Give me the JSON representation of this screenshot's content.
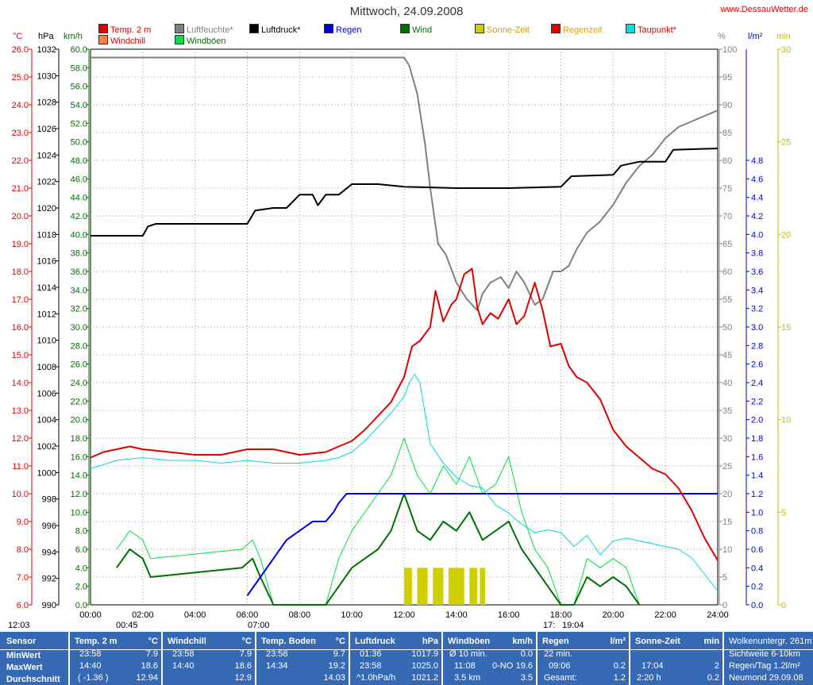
{
  "header": {
    "title": "Mittwoch, 24.09.2008",
    "site": "www.DessauWetter.de"
  },
  "legend": {
    "items": [
      {
        "label": "Temp. 2 m",
        "color": "#e00000",
        "text_color": "#e00000"
      },
      {
        "label": "Luftfeuchte*",
        "color": "#808080",
        "text_color": "#808080"
      },
      {
        "label": "Luftdruck*",
        "color": "#000000",
        "text_color": "#000000"
      },
      {
        "label": "Regen",
        "color": "#0000e0",
        "text_color": "#0000e0"
      },
      {
        "label": "Wind",
        "color": "#007000",
        "text_color": "#007000"
      },
      {
        "label": "Sonne-Zeit",
        "color": "#d0d000",
        "text_color": "#d0a000"
      },
      {
        "label": "Regenzeit",
        "color": "#e00000",
        "text_color": "#e0a000"
      },
      {
        "label": "Taupunkt*",
        "color": "#00e0e0",
        "text_color": "#e00000"
      },
      {
        "label": "Windchill",
        "color": "#ff8040",
        "text_color": "#e00000"
      },
      {
        "label": "Windböen",
        "color": "#00e040",
        "text_color": "#007000"
      }
    ]
  },
  "axes": {
    "units": {
      "temp": "°C",
      "pressure": "hPa",
      "wind": "km/h",
      "humidity": "%",
      "rain": "l/m²",
      "minutes": "min"
    },
    "temp_ticks": [
      "26.0",
      "25.0",
      "24.0",
      "23.0",
      "22.0",
      "21.0",
      "20.0",
      "19.0",
      "18.0",
      "17.0",
      "16.0",
      "15.0",
      "14.0",
      "13.0",
      "12.0",
      "11.0",
      "10.0",
      "9.0",
      "8.0",
      "7.0",
      "6.0"
    ],
    "pressure_ticks": [
      "1032",
      "1030",
      "1028",
      "1026",
      "1024",
      "1022",
      "1020",
      "1018",
      "1016",
      "1014",
      "1012",
      "1010",
      "1008",
      "1006",
      "1004",
      "1002",
      "1000",
      "998",
      "996",
      "994",
      "992",
      "990"
    ],
    "wind_ticks": [
      "60.0",
      "58.0",
      "56.0",
      "54.0",
      "52.0",
      "50.0",
      "48.0",
      "46.0",
      "44.0",
      "42.0",
      "40.0",
      "38.0",
      "36.0",
      "34.0",
      "32.0",
      "30.0",
      "28.0",
      "26.0",
      "24.0",
      "22.0",
      "20.0",
      "18.0",
      "16.0",
      "14.0",
      "12.0",
      "10.0",
      "8.0",
      "6.0",
      "4.0",
      "2.0",
      "0.0"
    ],
    "humidity_ticks": [
      "100",
      "95",
      "90",
      "85",
      "80",
      "75",
      "70",
      "65",
      "60",
      "55",
      "50",
      "45",
      "40",
      "35",
      "30",
      "25",
      "20",
      "15",
      "10",
      "5",
      "0"
    ],
    "rain_ticks": [
      "4.8",
      "4.6",
      "4.4",
      "4.2",
      "4.0",
      "3.8",
      "3.6",
      "3.4",
      "3.2",
      "3.0",
      "2.8",
      "2.6",
      "2.4",
      "2.2",
      "2.0",
      "1.8",
      "1.6",
      "1.4",
      "1.2",
      "1.0",
      "0.8",
      "0.6",
      "0.4",
      "0.2",
      "0.0"
    ],
    "minutes_ticks": [
      "30",
      "25",
      "20",
      "15",
      "10",
      "5",
      "0"
    ],
    "x_ticks": [
      "00:00",
      "02:00",
      "04:00",
      "06:00",
      "08:00",
      "10:00",
      "12:00",
      "14:00",
      "16:00",
      "18:00",
      "20:00",
      "22:00",
      "24:00"
    ]
  },
  "astro": {
    "moonrise": "12:03",
    "moonset": "00:45",
    "sunrise": "07:00",
    "sunset_marker": "17:",
    "sunset": "19:04"
  },
  "chart_data": {
    "type": "line",
    "x_unit": "hours",
    "xlim": [
      0,
      24
    ],
    "series": [
      {
        "name": "Temp. 2 m",
        "axis": "temp",
        "ylim": [
          6,
          26
        ],
        "x": [
          0,
          0.5,
          1,
          1.5,
          2,
          3,
          4,
          5,
          6,
          7,
          8,
          9,
          9.5,
          10,
          10.5,
          11,
          11.5,
          12,
          12.3,
          12.6,
          13,
          13.2,
          13.5,
          13.8,
          14,
          14.3,
          14.6,
          14.8,
          15,
          15.3,
          15.6,
          16,
          16.3,
          16.6,
          17,
          17.3,
          17.6,
          18,
          18.3,
          18.6,
          19,
          19.5,
          20,
          20.5,
          21,
          21.5,
          22,
          22.5,
          23,
          23.5,
          24
        ],
        "values": [
          11.3,
          11.5,
          11.6,
          11.7,
          11.6,
          11.5,
          11.4,
          11.4,
          11.6,
          11.6,
          11.4,
          11.5,
          11.7,
          11.9,
          12.3,
          12.8,
          13.3,
          14.2,
          15.3,
          15.5,
          16.0,
          17.3,
          16.2,
          16.8,
          17.0,
          17.9,
          18.1,
          16.7,
          16.1,
          16.5,
          16.3,
          17.0,
          16.1,
          16.4,
          17.6,
          16.6,
          15.3,
          15.4,
          14.6,
          14.2,
          14.0,
          13.4,
          12.3,
          11.7,
          11.3,
          10.9,
          10.7,
          10.2,
          9.4,
          8.4,
          7.6
        ]
      },
      {
        "name": "Taupunkt*",
        "axis": "temp",
        "ylim": [
          6,
          26
        ],
        "x": [
          0,
          1,
          2,
          3,
          4,
          5,
          6,
          7,
          8,
          9,
          9.5,
          10,
          10.5,
          11,
          11.5,
          12,
          12.2,
          12.4,
          12.6,
          13,
          13.5,
          14,
          14.5,
          15,
          15.5,
          16,
          16.5,
          17,
          17.5,
          18,
          18.5,
          19,
          19.5,
          20,
          20.5,
          21,
          21.5,
          22,
          22.5,
          23,
          23.5,
          24
        ],
        "values": [
          10.9,
          11.2,
          11.3,
          11.2,
          11.2,
          11.1,
          11.2,
          11.1,
          11.1,
          11.2,
          11.3,
          11.5,
          11.9,
          12.4,
          12.9,
          13.5,
          14.0,
          14.3,
          14.0,
          11.8,
          11.1,
          10.6,
          10.3,
          10.2,
          9.6,
          9.3,
          8.9,
          8.6,
          8.7,
          8.6,
          8.1,
          8.5,
          7.8,
          8.3,
          8.4,
          8.3,
          8.2,
          8.1,
          8.0,
          7.7,
          7.1,
          6.5
        ]
      },
      {
        "name": "Luftfeuchte*",
        "axis": "humidity",
        "ylim": [
          0,
          100
        ],
        "x": [
          0,
          6,
          12,
          12.2,
          12.5,
          12.8,
          13,
          13.3,
          13.6,
          14,
          14.4,
          14.8,
          15,
          15.3,
          15.7,
          16,
          16.3,
          16.6,
          17,
          17.3,
          17.7,
          18,
          18.3,
          18.6,
          19,
          19.5,
          20,
          20.5,
          21,
          21.5,
          22,
          22.5,
          23,
          23.5,
          24
        ],
        "values": [
          98.5,
          98.5,
          98.5,
          97,
          92,
          83,
          75,
          65,
          63,
          58,
          55,
          53,
          56,
          58,
          59,
          57,
          60,
          58,
          54,
          55,
          60,
          60,
          61,
          64,
          67,
          69,
          72,
          76,
          79,
          81,
          84,
          86,
          87,
          88,
          89
        ]
      },
      {
        "name": "Luftdruck*",
        "axis": "pressure",
        "ylim": [
          990,
          1032
        ],
        "x": [
          0,
          2,
          2.2,
          2.5,
          6,
          6.3,
          7,
          7.5,
          8,
          8.5,
          8.7,
          9,
          9.5,
          10,
          11,
          12,
          14,
          16,
          18,
          18.4,
          20,
          20.3,
          21,
          22,
          22.3,
          24
        ],
        "values": [
          1017.9,
          1017.9,
          1018.6,
          1018.8,
          1018.8,
          1019.8,
          1020.0,
          1020.0,
          1021.0,
          1021.0,
          1020.2,
          1021.0,
          1021.0,
          1021.8,
          1021.8,
          1021.6,
          1021.5,
          1021.5,
          1021.6,
          1022.4,
          1022.5,
          1023.2,
          1023.5,
          1023.5,
          1024.4,
          1024.5
        ]
      },
      {
        "name": "Regen",
        "axis": "rain",
        "ylim": [
          0,
          4.8
        ],
        "x": [
          6,
          6.5,
          7,
          7.5,
          8,
          8.5,
          9,
          9.3,
          9.5,
          9.8,
          10.5,
          12,
          14,
          16,
          18,
          20,
          22,
          24
        ],
        "values": [
          0.1,
          0.3,
          0.5,
          0.7,
          0.8,
          0.9,
          0.9,
          1.0,
          1.1,
          1.2,
          1.2,
          1.2,
          1.2,
          1.2,
          1.2,
          1.2,
          1.2,
          1.2
        ]
      },
      {
        "name": "Wind",
        "axis": "wind",
        "ylim": [
          0,
          60
        ],
        "x": [
          1,
          1.5,
          2,
          2.3,
          5.8,
          6.2,
          6.5,
          7,
          9,
          9.5,
          10,
          10.5,
          11,
          11.5,
          12,
          12.5,
          13,
          13.5,
          14,
          14.5,
          15,
          15.5,
          16,
          16.5,
          17,
          17.5,
          18,
          18.5,
          19,
          19.5,
          20,
          20.5,
          21
        ],
        "values": [
          4,
          6,
          5,
          3,
          4,
          5,
          3,
          0,
          0,
          2,
          4,
          5,
          6,
          8,
          12,
          8,
          7,
          9,
          8,
          10,
          7,
          8,
          9,
          6,
          4,
          2,
          0,
          0,
          3,
          2,
          3,
          2,
          0
        ]
      },
      {
        "name": "Windböen",
        "axis": "wind",
        "ylim": [
          0,
          60
        ],
        "x": [
          1,
          1.5,
          2,
          2.3,
          5.8,
          6.2,
          6.5,
          7,
          9,
          9.5,
          10,
          10.5,
          11,
          11.5,
          12,
          12.5,
          13,
          13.5,
          14,
          14.5,
          15,
          15.5,
          16,
          16.5,
          17,
          17.5,
          18,
          18.5,
          19,
          19.5,
          20,
          20.5,
          21
        ],
        "values": [
          6,
          8,
          7,
          5,
          6,
          7,
          5,
          0,
          0,
          5,
          8,
          10,
          12,
          14,
          18,
          14,
          12,
          15,
          13,
          16,
          12,
          13,
          16,
          10,
          6,
          4,
          0,
          0,
          5,
          4,
          5,
          4,
          0
        ]
      }
    ],
    "sun_periods": [
      [
        12.0,
        12.3
      ],
      [
        12.5,
        12.9
      ],
      [
        13.1,
        13.5
      ],
      [
        13.7,
        14.3
      ],
      [
        14.5,
        14.8
      ],
      [
        14.9,
        15.1
      ]
    ],
    "sun_ylim": [
      0,
      30
    ],
    "sun_value": 2
  },
  "stats": {
    "row_labels": [
      "Sensor",
      "MinWert",
      "MaxWert",
      "Durchschnitt"
    ],
    "temp": {
      "title": "Temp. 2 m",
      "unit": "°C",
      "min_time": "23:58",
      "min": "7.9",
      "max_time": "14:40",
      "max": "18.6",
      "avg_note": "( -1.36 )",
      "avg": "12.94"
    },
    "windchill": {
      "title": "Windchill",
      "unit": "°C",
      "min_time": "23:58",
      "min": "7.9",
      "max_time": "14:40",
      "max": "18.6",
      "avg": "12.9"
    },
    "soil": {
      "title": "Temp. Boden",
      "unit": "°C",
      "min_time": "23:58",
      "min": "9.7",
      "max_time": "14:34",
      "max": "19.2",
      "avg": "14.03"
    },
    "pressure": {
      "title": "Luftdruck",
      "unit": "hPa",
      "min_time": "01:36",
      "min": "1017.9",
      "max_time": "23:58",
      "max": "1025.0",
      "avg_note": "^1.0hPa/h",
      "avg": "1021.2"
    },
    "gusts": {
      "title": "Windböen",
      "unit": "km/h",
      "r1_label": "Ø 10 min.",
      "r1_value": "0.0",
      "r2_time": "11:08",
      "r2_dir": "0-NO",
      "r2_value": "19.6",
      "r3_label": "3.5 km",
      "r3_value": "3.5"
    },
    "rain": {
      "title": "Regen",
      "unit": "l/m²",
      "r1": "22 min.",
      "r2_time": "09:06",
      "r2_value": "0.2",
      "r3_label": "Gesamt:",
      "r3_value": "1.2"
    },
    "sun": {
      "title": "Sonne-Zeit",
      "unit": "min",
      "r2_time": "17:04",
      "r2_value": "2",
      "r3_label": "2:20 h",
      "r3_value": "0.2"
    },
    "extra": {
      "r0": "Wolkenuntergr. 261m",
      "r1": "Sichtweite   6-10km",
      "r2": "Regen/Tag   1.2l/m²",
      "r3": "Neumond   29.09.08"
    }
  }
}
